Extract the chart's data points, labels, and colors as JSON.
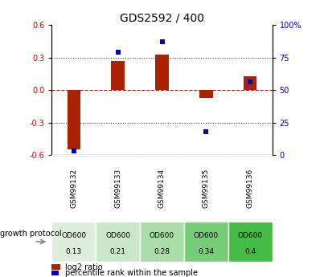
{
  "title": "GDS2592 / 400",
  "samples": [
    "GSM99132",
    "GSM99133",
    "GSM99134",
    "GSM99135",
    "GSM99136"
  ],
  "log2_ratio": [
    -0.55,
    0.27,
    0.33,
    -0.07,
    0.13
  ],
  "percentile_rank": [
    3,
    79,
    87,
    18,
    56
  ],
  "growth_protocol_top": [
    "OD600",
    "OD600",
    "OD600",
    "OD600",
    "OD600"
  ],
  "growth_protocol_bot": [
    "0.13",
    "0.21",
    "0.28",
    "0.34",
    "0.4"
  ],
  "growth_protocol_colors": [
    "#ddeedd",
    "#c8e8c8",
    "#aaddaa",
    "#77cc77",
    "#44bb44"
  ],
  "bar_color": "#aa2200",
  "percentile_color": "#0000cc",
  "ylim_left": [
    -0.6,
    0.6
  ],
  "ylim_right": [
    0,
    100
  ],
  "yticks_left": [
    -0.6,
    -0.3,
    0.0,
    0.3,
    0.6
  ],
  "yticks_right": [
    0,
    25,
    50,
    75,
    100
  ],
  "ytick_labels_right": [
    "0",
    "25",
    "50",
    "75",
    "100%"
  ],
  "hline_color": "#cc0000",
  "dotted_line_color": "#333333",
  "bg_color": "#ffffff",
  "plot_bg": "#ffffff",
  "label_log2": "log2 ratio",
  "label_percentile": "percentile rank within the sample",
  "growth_label": "growth protocol",
  "sample_bg": "#cccccc",
  "bar_width": 0.3
}
